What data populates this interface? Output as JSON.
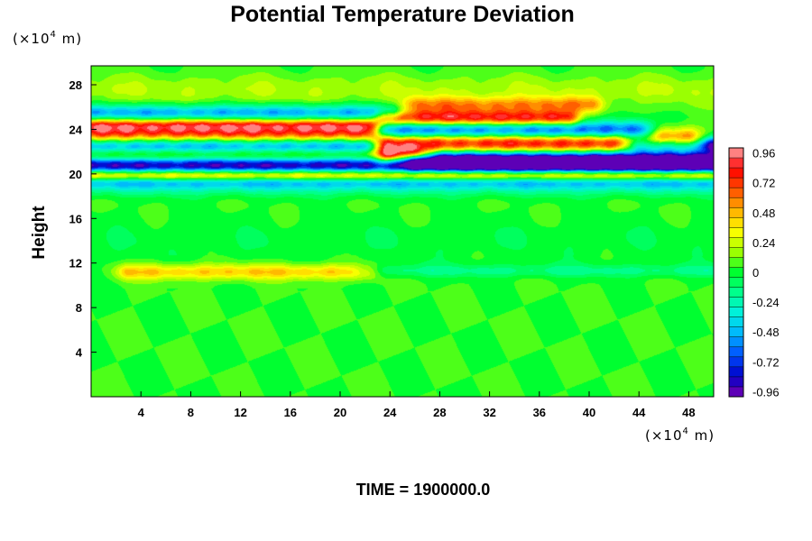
{
  "chart_data": {
    "type": "heatmap",
    "title": "Potential Temperature Deviation",
    "ylabel": "Height",
    "xlabel": "",
    "x_unit": {
      "prefix": "(×10",
      "exp": "4",
      "suffix": " m)"
    },
    "y_unit": {
      "prefix": "(×10",
      "exp": "4",
      "suffix": " m)"
    },
    "x_ticks": [
      4,
      8,
      12,
      16,
      20,
      24,
      28,
      32,
      36,
      40,
      44,
      48
    ],
    "y_ticks": [
      4,
      8,
      12,
      16,
      20,
      24,
      28
    ],
    "xlim": [
      0,
      50
    ],
    "ylim": [
      0,
      29.7
    ],
    "colorbar": {
      "range": [
        -1.0,
        1.0
      ],
      "tick_values": [
        0.96,
        0.72,
        0.48,
        0.24,
        0,
        -0.24,
        -0.48,
        -0.72,
        -0.96
      ],
      "tick_labels": [
        "0.96",
        "0.72",
        "0.48",
        "0.24",
        "0",
        "-0.24",
        "-0.48",
        "-0.72",
        "-0.96"
      ],
      "levels": 25,
      "colormap": [
        "#7a00b0",
        "#0000c8",
        "#0050ff",
        "#00b4ff",
        "#00f0e0",
        "#00ff90",
        "#00ff30",
        "#a0ff00",
        "#ffff00",
        "#ffb000",
        "#ff5000",
        "#ff0000",
        "#ffaaaa"
      ]
    },
    "background_value": 0.04,
    "field_features": [
      {
        "kind": "band",
        "y": 22.3,
        "thickness": 0.9,
        "x_range": [
          0,
          22
        ],
        "value": -0.98
      },
      {
        "kind": "band",
        "y": 23.5,
        "thickness": 0.6,
        "x_range": [
          0,
          22
        ],
        "value": 0.98
      },
      {
        "kind": "band",
        "y": 21.7,
        "thickness": 0.5,
        "x_range": [
          0,
          26
        ],
        "value": 0.98
      },
      {
        "kind": "band",
        "y": 20.6,
        "thickness": 0.7,
        "x_range": [
          0,
          50
        ],
        "value": -0.98
      },
      {
        "kind": "band",
        "y": 19.9,
        "thickness": 0.4,
        "x_range": [
          0,
          50
        ],
        "value": 0.98
      },
      {
        "kind": "band",
        "y": 23.8,
        "thickness": 0.6,
        "x_range": [
          24,
          44
        ],
        "value": -0.98
      },
      {
        "kind": "band",
        "y": 22.9,
        "thickness": 0.7,
        "x_range": [
          24,
          48
        ],
        "value": 0.98
      },
      {
        "kind": "band",
        "y": 21.2,
        "thickness": 0.6,
        "x_range": [
          26,
          50
        ],
        "value": -0.98
      },
      {
        "kind": "band",
        "y": 22.6,
        "thickness": 0.5,
        "x_range": [
          44,
          50
        ],
        "value": -0.98
      },
      {
        "kind": "band",
        "y": 25.5,
        "thickness": 0.5,
        "x_range": [
          0,
          24
        ],
        "value": -0.55
      },
      {
        "kind": "band",
        "y": 25.0,
        "thickness": 0.5,
        "x_range": [
          24,
          38
        ],
        "value": 0.85
      },
      {
        "kind": "band",
        "y": 26.2,
        "thickness": 0.5,
        "x_range": [
          26,
          40
        ],
        "value": 0.45
      },
      {
        "kind": "band",
        "y": 24.4,
        "thickness": 0.4,
        "x_range": [
          0,
          22
        ],
        "value": 0.6
      },
      {
        "kind": "band",
        "y": 19.3,
        "thickness": 0.4,
        "x_range": [
          0,
          50
        ],
        "value": -0.45
      },
      {
        "kind": "band",
        "y": 18.6,
        "thickness": 0.5,
        "x_range": [
          0,
          50
        ],
        "value": -0.2
      },
      {
        "kind": "band",
        "y": 11.2,
        "thickness": 0.5,
        "x_range": [
          3,
          22
        ],
        "value": 0.4
      },
      {
        "kind": "band",
        "y": 11.3,
        "thickness": 0.4,
        "x_range": [
          22,
          50
        ],
        "value": -0.18
      },
      {
        "kind": "band",
        "y": 27.5,
        "thickness": 1.0,
        "x_range": [
          0,
          50
        ],
        "value": 0.15
      },
      {
        "kind": "band",
        "y": 14.0,
        "thickness": 1.5,
        "x_range": [
          0,
          50
        ],
        "value": -0.06
      }
    ]
  },
  "footer": {
    "time_text": "TIME = 1900000.0"
  }
}
